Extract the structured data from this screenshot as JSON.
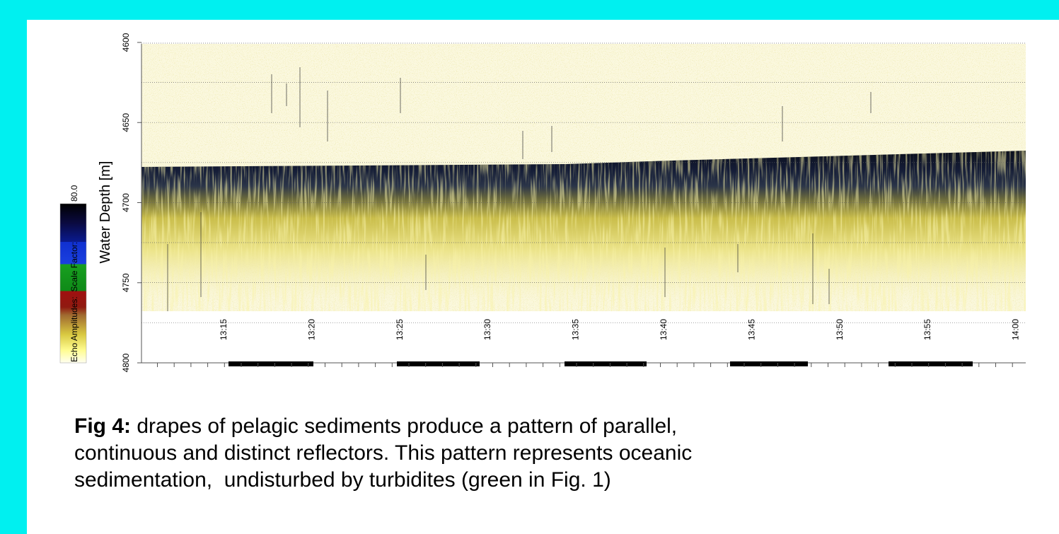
{
  "figure": {
    "y_axis_label": "Water Depth [m]",
    "y_ticks": [
      "4600",
      "4650",
      "4700",
      "4750",
      "4800"
    ],
    "x_ticks": [
      "13:15",
      "13:20",
      "13:25",
      "13:30",
      "13:35",
      "13:40",
      "13:45",
      "13:50",
      "13:55",
      "14:00"
    ],
    "colorbar": {
      "label": "Echo Amplitudes:  Scale Factor:",
      "value": "80.0"
    }
  },
  "caption": {
    "label": "Fig 4:",
    "lines": [
      "drapes of pelagic sediments produce a pattern of parallel,",
      "continuous and distinct reflectors. This pattern represents oceanic",
      "sedimentation,  undisturbed by turbidites (green in Fig. 1)"
    ]
  }
}
